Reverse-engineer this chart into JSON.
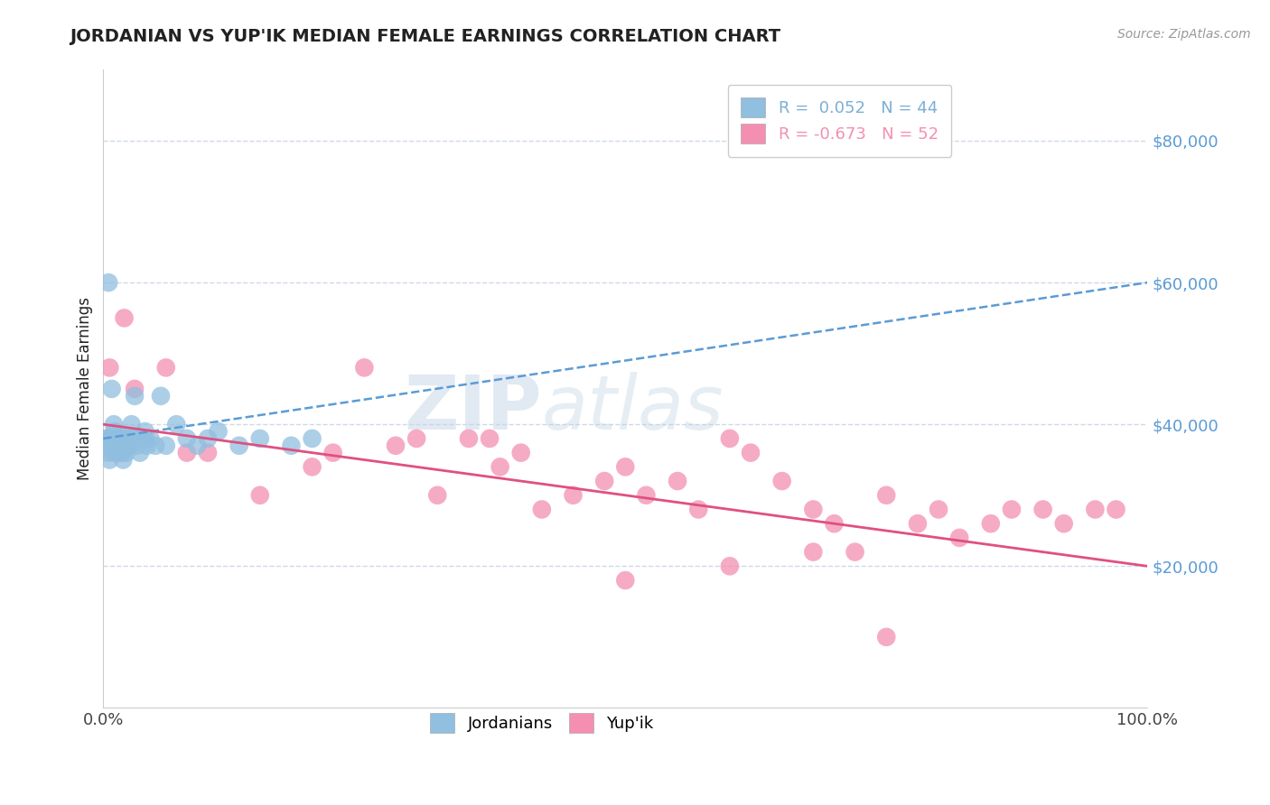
{
  "title": "JORDANIAN VS YUP'IK MEDIAN FEMALE EARNINGS CORRELATION CHART",
  "source": "Source: ZipAtlas.com",
  "ylabel": "Median Female Earnings",
  "xlim": [
    0.0,
    1.0
  ],
  "ylim": [
    0,
    90000
  ],
  "yticks": [
    20000,
    40000,
    60000,
    80000
  ],
  "ytick_labels": [
    "$20,000",
    "$40,000",
    "$60,000",
    "$80,000"
  ],
  "xtick_labels": [
    "0.0%",
    "100.0%"
  ],
  "watermark_zip": "ZIP",
  "watermark_atlas": "atlas",
  "legend_entries": [
    {
      "label": "R =  0.052   N = 44",
      "color": "#7bafd4"
    },
    {
      "label": "R = -0.673   N = 52",
      "color": "#f48fb1"
    }
  ],
  "legend_labels_bottom": [
    "Jordanians",
    "Yup'ik"
  ],
  "jordanian_color": "#90bfe0",
  "yupik_color": "#f48fb1",
  "trend_jordanian_color": "#5b9bd5",
  "trend_yupik_color": "#e05080",
  "background_color": "#ffffff",
  "grid_color": "#d0d8e8",
  "title_color": "#222222",
  "ylabel_color": "#222222",
  "ytick_color": "#5b9bd5",
  "xtick_color": "#444444",
  "trend_j_x0": 0.0,
  "trend_j_y0": 38000,
  "trend_j_x1": 1.0,
  "trend_j_y1": 60000,
  "trend_p_x0": 0.0,
  "trend_p_y0": 40000,
  "trend_p_x1": 1.0,
  "trend_p_y1": 20000,
  "jordanian_x": [
    0.002,
    0.003,
    0.004,
    0.005,
    0.006,
    0.007,
    0.008,
    0.009,
    0.01,
    0.011,
    0.012,
    0.013,
    0.014,
    0.015,
    0.016,
    0.017,
    0.018,
    0.019,
    0.02,
    0.021,
    0.022,
    0.023,
    0.025,
    0.027,
    0.028,
    0.03,
    0.032,
    0.035,
    0.038,
    0.04,
    0.042,
    0.045,
    0.05,
    0.055,
    0.06,
    0.07,
    0.08,
    0.09,
    0.1,
    0.11,
    0.13,
    0.15,
    0.18,
    0.2
  ],
  "jordanian_y": [
    38000,
    37000,
    36000,
    60000,
    35000,
    38000,
    45000,
    38000,
    40000,
    39000,
    37000,
    38000,
    36000,
    38000,
    37000,
    36000,
    38000,
    35000,
    38000,
    37000,
    36000,
    38000,
    37000,
    40000,
    38000,
    44000,
    37000,
    36000,
    38000,
    39000,
    37000,
    38000,
    37000,
    44000,
    37000,
    40000,
    38000,
    37000,
    38000,
    39000,
    37000,
    38000,
    37000,
    38000
  ],
  "yupik_x": [
    0.004,
    0.006,
    0.008,
    0.01,
    0.012,
    0.015,
    0.018,
    0.02,
    0.025,
    0.03,
    0.04,
    0.06,
    0.08,
    0.1,
    0.15,
    0.2,
    0.22,
    0.25,
    0.28,
    0.3,
    0.32,
    0.35,
    0.37,
    0.38,
    0.4,
    0.42,
    0.45,
    0.48,
    0.5,
    0.52,
    0.55,
    0.57,
    0.6,
    0.62,
    0.65,
    0.68,
    0.7,
    0.72,
    0.75,
    0.78,
    0.8,
    0.82,
    0.85,
    0.87,
    0.9,
    0.92,
    0.95,
    0.97,
    0.5,
    0.6,
    0.68,
    0.75
  ],
  "yupik_y": [
    38000,
    48000,
    37000,
    36000,
    37000,
    38000,
    36000,
    55000,
    37000,
    45000,
    38000,
    48000,
    36000,
    36000,
    30000,
    34000,
    36000,
    48000,
    37000,
    38000,
    30000,
    38000,
    38000,
    34000,
    36000,
    28000,
    30000,
    32000,
    34000,
    30000,
    32000,
    28000,
    38000,
    36000,
    32000,
    28000,
    26000,
    22000,
    30000,
    26000,
    28000,
    24000,
    26000,
    28000,
    28000,
    26000,
    28000,
    28000,
    18000,
    20000,
    22000,
    10000
  ]
}
